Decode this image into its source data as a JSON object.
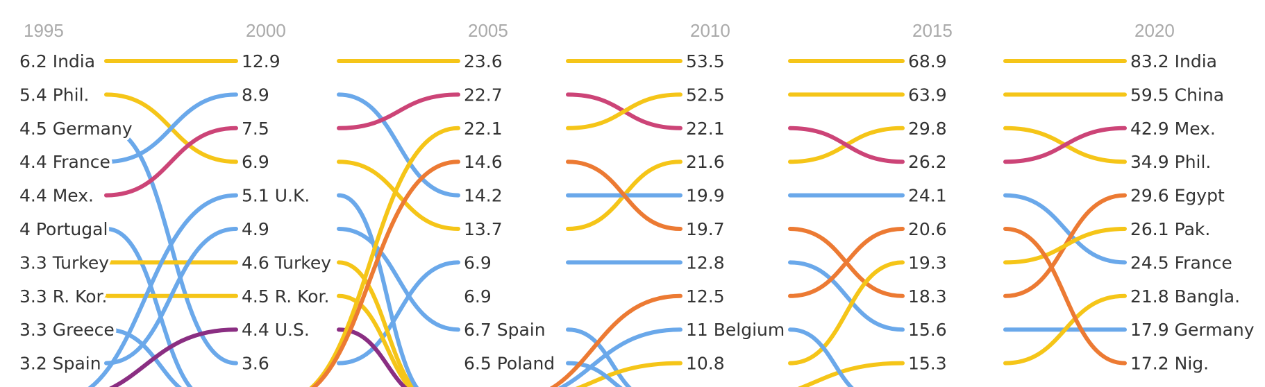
{
  "colors": {
    "india_line": "#F5C518",
    "mexico_line": "#CC4477",
    "europe_line": "#6AA8EA",
    "africa_line": "#EC7A33",
    "usa_line": "#8A2E82",
    "text": "#333333",
    "year_text": "#AAAAAA"
  },
  "chart_data": {
    "type": "line",
    "subtype": "bump",
    "title": "",
    "xlabel": "",
    "ylabel": "",
    "x": [
      "1995",
      "2000",
      "2005",
      "2010",
      "2015",
      "2020"
    ],
    "columns": [
      {
        "year": "1995",
        "entries": [
          {
            "value": "6.2",
            "name": "India"
          },
          {
            "value": "5.4",
            "name": "Phil."
          },
          {
            "value": "4.5",
            "name": "Germany"
          },
          {
            "value": "4.4",
            "name": "France"
          },
          {
            "value": "4.4",
            "name": "Mex."
          },
          {
            "value": "4",
            "name": "Portugal"
          },
          {
            "value": "3.3",
            "name": "Turkey"
          },
          {
            "value": "3.3",
            "name": "R. Kor."
          },
          {
            "value": "3.3",
            "name": "Greece"
          },
          {
            "value": "3.2",
            "name": "Spain"
          }
        ]
      },
      {
        "year": "2000",
        "entries": [
          {
            "value": "12.9",
            "name": ""
          },
          {
            "value": "8.9",
            "name": ""
          },
          {
            "value": "7.5",
            "name": ""
          },
          {
            "value": "6.9",
            "name": ""
          },
          {
            "value": "5.1",
            "name": "U.K."
          },
          {
            "value": "4.9",
            "name": ""
          },
          {
            "value": "4.6",
            "name": "Turkey"
          },
          {
            "value": "4.5",
            "name": "R. Kor."
          },
          {
            "value": "4.4",
            "name": "U.S."
          },
          {
            "value": "3.6",
            "name": ""
          }
        ]
      },
      {
        "year": "2005",
        "entries": [
          {
            "value": "23.6",
            "name": ""
          },
          {
            "value": "22.7",
            "name": ""
          },
          {
            "value": "22.1",
            "name": ""
          },
          {
            "value": "14.6",
            "name": ""
          },
          {
            "value": "14.2",
            "name": ""
          },
          {
            "value": "13.7",
            "name": ""
          },
          {
            "value": "6.9",
            "name": ""
          },
          {
            "value": "6.9",
            "name": ""
          },
          {
            "value": "6.7",
            "name": "Spain"
          },
          {
            "value": "6.5",
            "name": "Poland"
          }
        ]
      },
      {
        "year": "2010",
        "entries": [
          {
            "value": "53.5",
            "name": ""
          },
          {
            "value": "52.5",
            "name": ""
          },
          {
            "value": "22.1",
            "name": ""
          },
          {
            "value": "21.6",
            "name": ""
          },
          {
            "value": "19.9",
            "name": ""
          },
          {
            "value": "19.7",
            "name": ""
          },
          {
            "value": "12.8",
            "name": ""
          },
          {
            "value": "12.5",
            "name": ""
          },
          {
            "value": "11",
            "name": "Belgium"
          },
          {
            "value": "10.8",
            "name": ""
          }
        ]
      },
      {
        "year": "2015",
        "entries": [
          {
            "value": "68.9",
            "name": ""
          },
          {
            "value": "63.9",
            "name": ""
          },
          {
            "value": "29.8",
            "name": ""
          },
          {
            "value": "26.2",
            "name": ""
          },
          {
            "value": "24.1",
            "name": ""
          },
          {
            "value": "20.6",
            "name": ""
          },
          {
            "value": "19.3",
            "name": ""
          },
          {
            "value": "18.3",
            "name": ""
          },
          {
            "value": "15.6",
            "name": ""
          },
          {
            "value": "15.3",
            "name": ""
          }
        ]
      },
      {
        "year": "2020",
        "entries": [
          {
            "value": "83.2",
            "name": "India"
          },
          {
            "value": "59.5",
            "name": "China"
          },
          {
            "value": "42.9",
            "name": "Mex."
          },
          {
            "value": "34.9",
            "name": "Phil."
          },
          {
            "value": "29.6",
            "name": "Egypt"
          },
          {
            "value": "26.1",
            "name": "Pak."
          },
          {
            "value": "24.5",
            "name": "France"
          },
          {
            "value": "21.8",
            "name": "Bangla."
          },
          {
            "value": "17.9",
            "name": "Germany"
          },
          {
            "value": "17.2",
            "name": "Nig."
          }
        ]
      }
    ],
    "series": [
      {
        "name": "India",
        "color": "#F5C518",
        "ranks": [
          1,
          1,
          1,
          1,
          1,
          1
        ]
      },
      {
        "name": "Phil.",
        "color": "#F5C518",
        "ranks": [
          2,
          4,
          6,
          4,
          3,
          4
        ]
      },
      {
        "name": "Germany",
        "color": "#6AA8EA",
        "ranks": [
          3,
          10,
          7,
          7,
          9,
          9
        ]
      },
      {
        "name": "France",
        "color": "#6AA8EA",
        "ranks": [
          4,
          2,
          5,
          5,
          5,
          7
        ]
      },
      {
        "name": "Mex.",
        "color": "#CC4477",
        "ranks": [
          5,
          3,
          2,
          3,
          4,
          3
        ]
      },
      {
        "name": "Portugal",
        "color": "#6AA8EA",
        "ranks": [
          6,
          11
        ]
      },
      {
        "name": "Turkey",
        "color": "#F5C518",
        "ranks": [
          7,
          7,
          11
        ]
      },
      {
        "name": "R. Kor.",
        "color": "#F5C518",
        "ranks": [
          8,
          8,
          11
        ]
      },
      {
        "name": "Greece",
        "color": "#6AA8EA",
        "ranks": [
          9,
          11
        ]
      },
      {
        "name": "Spain",
        "color": "#6AA8EA",
        "ranks": [
          10,
          6,
          9,
          11
        ]
      },
      {
        "name": "U.K.",
        "color": "#6AA8EA",
        "ranks": [
          11,
          5,
          11
        ]
      },
      {
        "name": "U.S.",
        "color": "#8A2E82",
        "ranks": [
          11,
          9,
          11
        ]
      },
      {
        "name": "China",
        "color": "#F5C518",
        "ranks": [
          11,
          11,
          3,
          2,
          2,
          2
        ]
      },
      {
        "name": "Egypt",
        "color": "#EC7A33",
        "ranks": [
          11,
          11,
          4,
          6,
          8,
          5
        ]
      },
      {
        "name": "Pak.",
        "color": "#F5C518",
        "ranks": [
          null,
          null,
          11,
          10,
          7,
          6
        ]
      },
      {
        "name": "Bangla.",
        "color": "#F5C518",
        "ranks": [
          null,
          null,
          null,
          11,
          10,
          8
        ]
      },
      {
        "name": "Poland",
        "color": "#6AA8EA",
        "ranks": [
          null,
          null,
          10,
          11
        ]
      },
      {
        "name": "Belgium",
        "color": "#6AA8EA",
        "ranks": [
          null,
          null,
          11,
          9,
          11
        ]
      },
      {
        "name": "Nig.",
        "color": "#EC7A33",
        "ranks": [
          null,
          null,
          11,
          8,
          6,
          10
        ]
      }
    ]
  }
}
